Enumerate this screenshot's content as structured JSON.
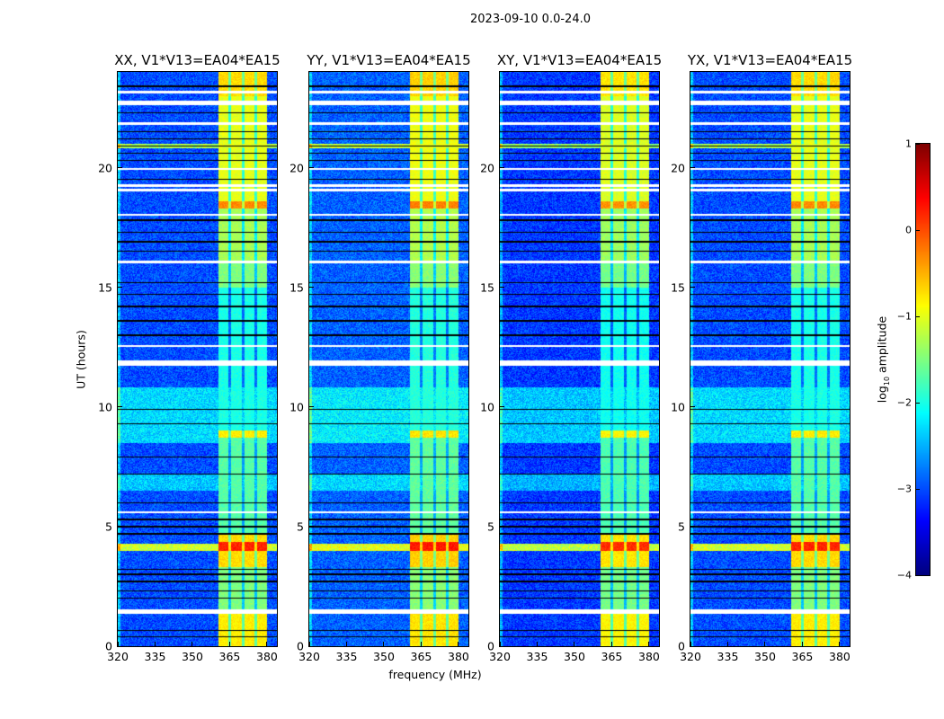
{
  "chart_data": {
    "type": "heatmap",
    "suptitle": "2023-09-10 0.0-24.0",
    "xlabel": "frequency (MHz)",
    "ylabel": "UT (hours)",
    "xlim": [
      320,
      384
    ],
    "ylim": [
      0,
      24
    ],
    "xticks": [
      "320",
      "335",
      "350",
      "365",
      "380"
    ],
    "xtick_values": [
      320,
      335,
      350,
      365,
      380
    ],
    "yticks": [
      "0",
      "5",
      "10",
      "15",
      "20"
    ],
    "ytick_values": [
      0,
      5,
      10,
      15,
      20
    ],
    "colormap": "jet",
    "colorbar": {
      "label_main": "log",
      "label_sub": "10",
      "label_tail": " amplitude",
      "range": [
        -4,
        1
      ],
      "ticks": [
        "1",
        "0",
        "−1",
        "−2",
        "−3",
        "−4"
      ],
      "tick_values": [
        1,
        0,
        -1,
        -2,
        -3,
        -4
      ]
    },
    "panels": [
      {
        "title": "XX, V1*V13=EA04*EA15",
        "offset": 0.0
      },
      {
        "title": "YY, V1*V13=EA04*EA15",
        "offset": 0.1
      },
      {
        "title": "XY, V1*V13=EA04*EA15",
        "offset": -0.1
      },
      {
        "title": "YX, V1*V13=EA04*EA15",
        "offset": 0.0
      }
    ],
    "rfi_band_mhz": [
      360.5,
      380
    ],
    "rfi_subband_gaps_mhz": [
      365,
      370.5,
      375.5
    ],
    "background_log_amp": -3.0,
    "band_levels": [
      {
        "t": [
          0,
          1.35
        ],
        "v": -0.8
      },
      {
        "t": [
          1.55,
          3.3
        ],
        "v": -1.5
      },
      {
        "t": [
          3.3,
          4.0
        ],
        "v": -0.7
      },
      {
        "t": [
          4.0,
          4.35
        ],
        "v": 0.2
      },
      {
        "t": [
          4.35,
          4.7
        ],
        "v": -0.7
      },
      {
        "t": [
          4.7,
          8.7
        ],
        "v": -1.7
      },
      {
        "t": [
          8.7,
          9.0
        ],
        "v": -0.8
      },
      {
        "t": [
          9.0,
          15.0
        ],
        "v": -2.0
      },
      {
        "t": [
          15.0,
          16.0
        ],
        "v": -1.5
      },
      {
        "t": [
          16.0,
          18.3
        ],
        "v": -1.3
      },
      {
        "t": [
          18.3,
          18.6
        ],
        "v": -0.3
      },
      {
        "t": [
          18.6,
          23.0
        ],
        "v": -1.0
      },
      {
        "t": [
          23.0,
          24.0
        ],
        "v": -0.7
      }
    ],
    "background_events": [
      {
        "t": [
          4.0,
          4.3
        ],
        "v": -1.1
      },
      {
        "t": [
          8.5,
          10.8
        ],
        "v": -2.3
      },
      {
        "t": [
          6.5,
          7.2
        ],
        "v": -2.4
      },
      {
        "t": [
          20.8,
          21.0
        ],
        "v": -1.3
      }
    ],
    "flagged_blank_hours": [
      [
        1.35,
        1.55
      ],
      [
        5.55,
        5.65
      ],
      [
        11.7,
        11.95
      ],
      [
        12.5,
        12.6
      ],
      [
        16.0,
        16.1
      ],
      [
        18.0,
        18.08
      ],
      [
        19.0,
        19.1
      ],
      [
        19.2,
        19.3
      ],
      [
        19.9,
        20.0
      ],
      [
        21.8,
        21.9
      ],
      [
        22.6,
        22.8
      ],
      [
        23.1,
        23.2
      ]
    ],
    "zero_line_hours": [
      0.4,
      0.65,
      2.0,
      2.3,
      2.7,
      3.0,
      3.2,
      4.7,
      5.0,
      5.3,
      6.0,
      7.2,
      7.9,
      9.3,
      9.9,
      13.0,
      13.6,
      14.2,
      14.7,
      15.2,
      16.5,
      16.9,
      17.3,
      17.8,
      19.5,
      20.3,
      20.6,
      20.9,
      21.2,
      21.5,
      22.3,
      23.4
    ]
  }
}
